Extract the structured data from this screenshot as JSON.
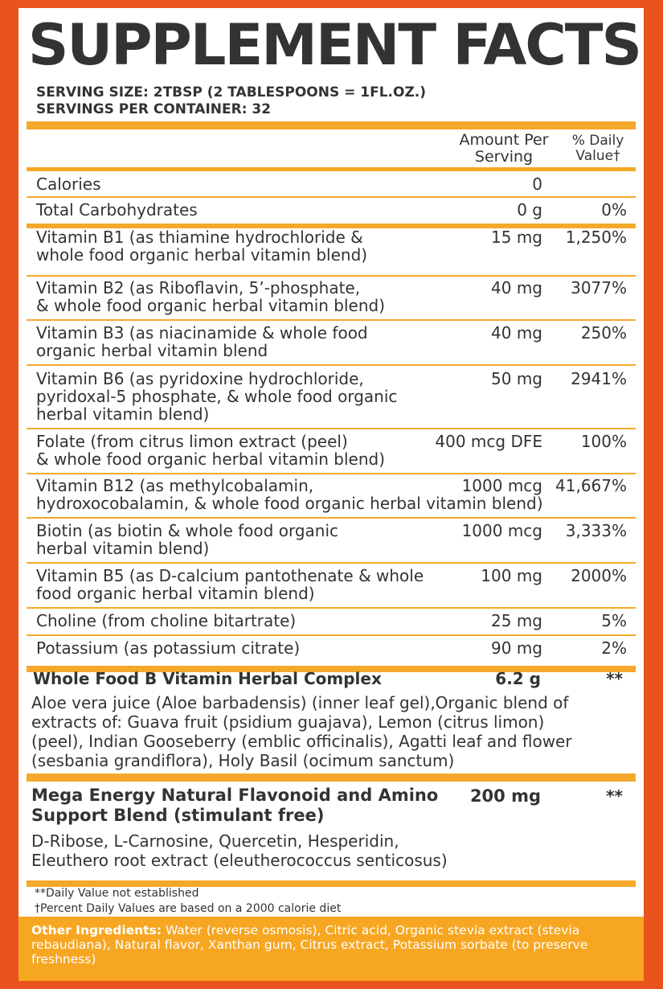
{
  "title": "SUPPLEMENT FACTS",
  "serving_size": "SERVING SIZE: 2TBSP (2 TABLESPOONS = 1FL.OZ.)",
  "servings_per_container": "SERVINGS PER CONTAINER: 32",
  "header": {
    "amount_line1": "Amount Per",
    "amount_line2": "Serving",
    "dv_line1": "% Daily",
    "dv_line2": "Value†"
  },
  "rows": [
    {
      "lines": [
        "Calories"
      ],
      "amount": "0",
      "dv": ""
    },
    {
      "lines": [
        "Total Carbohydrates"
      ],
      "amount": "0 g",
      "dv": "0%"
    },
    {
      "lines": [
        "Vitamin B1 (as thiamine hydrochloride &",
        "whole food organic herbal vitamin blend)"
      ],
      "amount": "15 mg",
      "dv": "1,250%"
    },
    {
      "lines": [
        "Vitamin B2 (as Riboflavin, 5’-phosphate,",
        "& whole food organic herbal vitamin blend)"
      ],
      "amount": "40 mg",
      "dv": "3077%"
    },
    {
      "lines": [
        "Vitamin B3 (as niacinamide & whole food",
        "organic herbal vitamin blend"
      ],
      "amount": "40 mg",
      "dv": "250%"
    },
    {
      "lines": [
        "Vitamin B6 (as pyridoxine hydrochloride,",
        "pyridoxal-5 phosphate, & whole food organic",
        "herbal vitamin blend)"
      ],
      "amount": "50 mg",
      "dv": "2941%"
    },
    {
      "lines": [
        "Folate (from citrus limon extract (peel)",
        "& whole food organic herbal vitamin blend)"
      ],
      "amount": "400 mcg DFE",
      "dv": "100%"
    },
    {
      "lines": [
        "Vitamin B12 (as methylcobalamin,",
        "hydroxocobalamin, & whole food organic herbal vitamin blend)"
      ],
      "amount": "1000 mcg",
      "dv": "41,667%"
    },
    {
      "lines": [
        "Biotin (as biotin & whole food organic",
        "herbal vitamin blend)"
      ],
      "amount": "1000 mcg",
      "dv": "3,333%"
    },
    {
      "lines": [
        "Vitamin B5 (as D-calcium pantothenate & whole",
        "food organic herbal vitamin blend)"
      ],
      "amount": "100 mg",
      "dv": "2000%"
    },
    {
      "lines": [
        "Choline (from choline bitartrate)"
      ],
      "amount": "25 mg",
      "dv": "5%"
    },
    {
      "lines": [
        "Potassium (as potassium citrate)"
      ],
      "amount": "90 mg",
      "dv": "2%"
    }
  ],
  "complex1": {
    "name": "Whole Food B Vitamin Herbal Complex",
    "amount": "6.2 g",
    "dv": "**",
    "lines": [
      "Aloe vera juice (Aloe barbadensis) (inner leaf gel),Organic blend of",
      "extracts of: Guava fruit (psidium guajava), Lemon (citrus limon)",
      "(peel), Indian Gooseberry (emblic officinalis),  Agatti leaf and flower",
      "(sesbania grandiflora), Holy Basil (ocimum sanctum)"
    ]
  },
  "complex2": {
    "name_line1": "Mega Energy Natural Flavonoid and Amino",
    "name_line2": "Support Blend (stimulant free)",
    "amount": "200 mg",
    "dv": "**",
    "lines": [
      "D-Ribose, L-Carnosine, Quercetin, Hesperidin,",
      "Eleuthero root extract (eleutherococcus senticosus)"
    ]
  },
  "footnotes": [
    "**Daily Value not established",
    "†Percent Daily Values are based on a 2000 calorie diet"
  ],
  "other_ingredients": {
    "label": "Other Ingredients:",
    "text": " Water (reverse osmosis), Citric acid, Organic stevia extract (stevia rebaudiana), Natural flavor, Xanthan gum, Citrus extract, Potassium sorbate (to preserve freshness)"
  },
  "colors": {
    "border": "#e8541c",
    "accent": "#f6a82a",
    "text": "#333333"
  }
}
